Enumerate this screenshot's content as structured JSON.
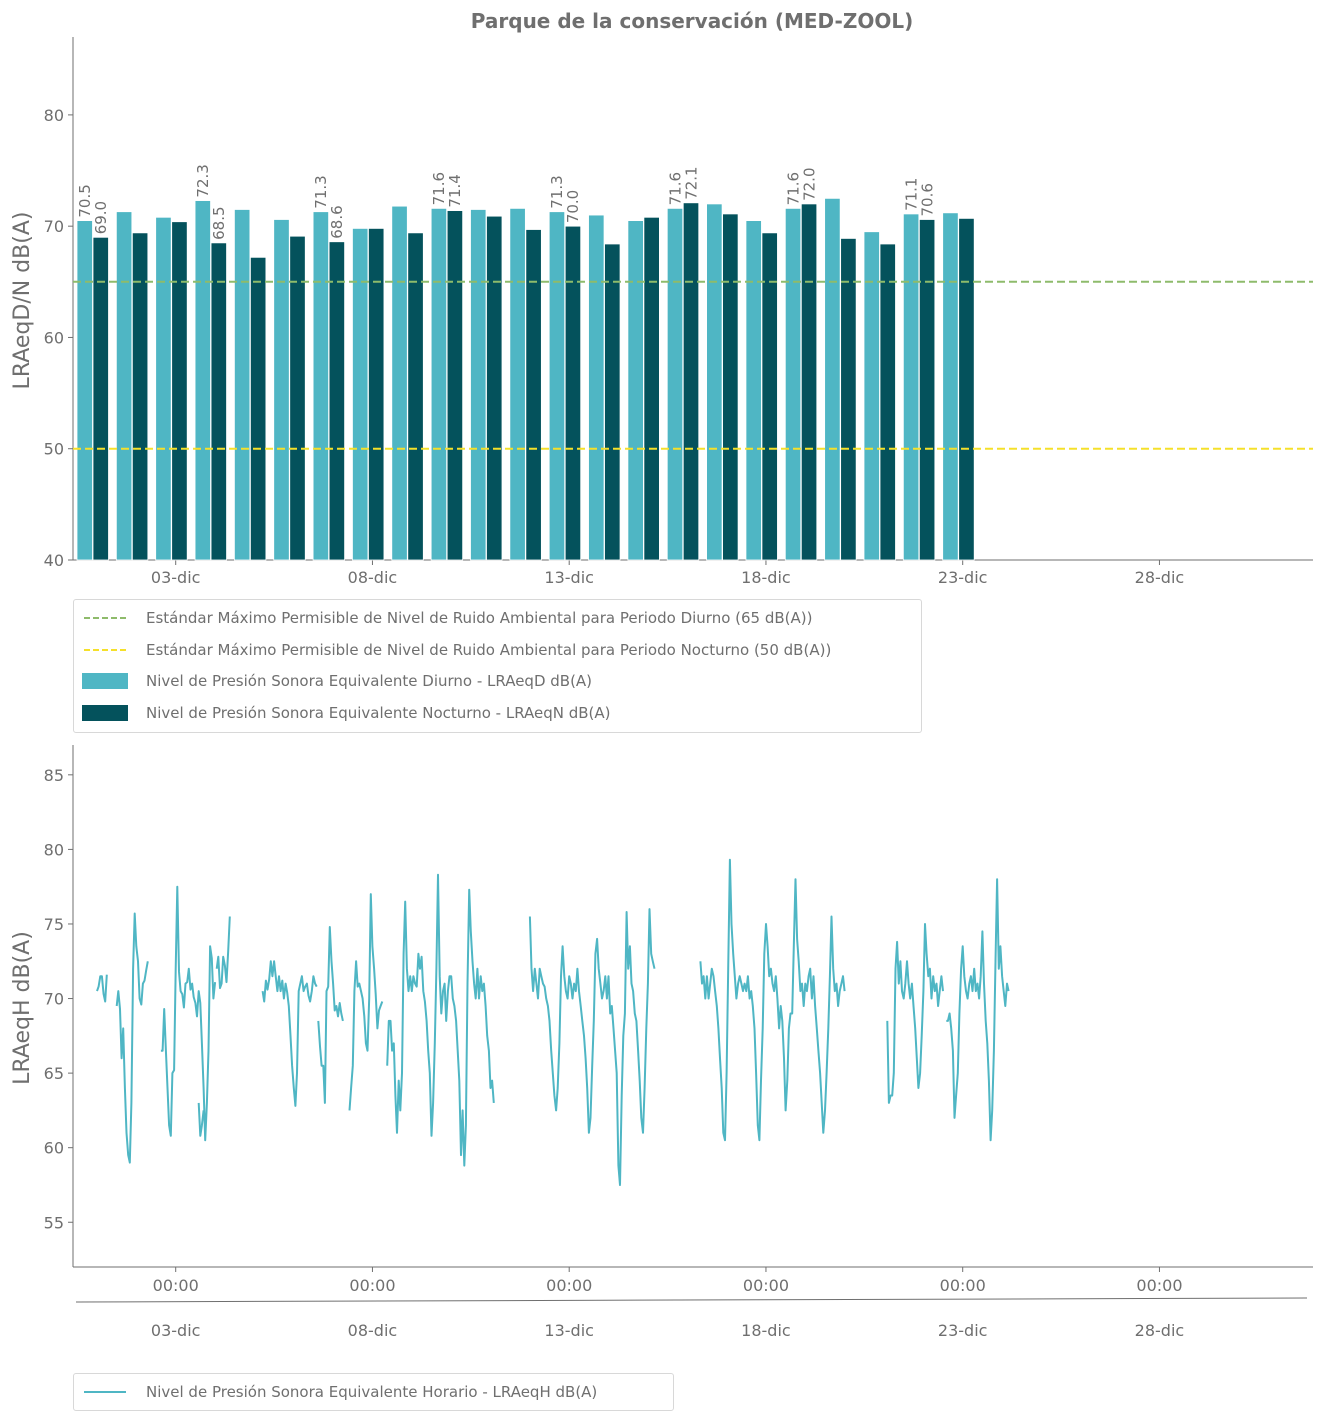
{
  "title": "Parque de la conservación  (MED-ZOOL)",
  "colors": {
    "day": "#4fb6c4",
    "night": "#04525c",
    "std_day": "#8ebb6b",
    "std_night": "#f5e02a",
    "hourly": "#4fb6c4",
    "text": "#6f6f6f"
  },
  "chart_data": [
    {
      "type": "bar",
      "ylabel": "LRAeqD/N dB(A)",
      "ylim": [
        40,
        87
      ],
      "yticks": [
        40,
        50,
        60,
        70,
        80
      ],
      "x_domain": [
        "2023-12-01",
        "2023-12-31"
      ],
      "xticks": [
        "03-dic",
        "08-dic",
        "13-dic",
        "18-dic",
        "23-dic",
        "28-dic"
      ],
      "categories": [
        "01-dic",
        "02-dic",
        "03-dic",
        "04-dic",
        "05-dic",
        "06-dic",
        "07-dic",
        "08-dic",
        "09-dic",
        "10-dic",
        "11-dic",
        "12-dic",
        "13-dic",
        "14-dic",
        "15-dic",
        "16-dic",
        "17-dic",
        "18-dic",
        "19-dic",
        "20-dic",
        "21-dic",
        "22-dic",
        "23-dic"
      ],
      "series": [
        {
          "name": "Nivel de Presión Sonora Equivalente Diurno - LRAeqD dB(A)",
          "values": [
            70.5,
            71.3,
            70.8,
            72.3,
            71.5,
            70.6,
            71.3,
            69.8,
            71.8,
            71.6,
            71.5,
            71.6,
            71.3,
            71.0,
            70.5,
            71.6,
            72.0,
            70.5,
            71.6,
            72.5,
            69.5,
            71.1,
            71.2
          ]
        },
        {
          "name": "Nivel de Presión Sonora Equivalente Nocturno - LRAeqN dB(A)",
          "values": [
            69.0,
            69.4,
            70.4,
            68.5,
            67.2,
            69.1,
            68.6,
            69.8,
            69.4,
            71.4,
            70.9,
            69.7,
            70.0,
            68.4,
            70.8,
            72.1,
            71.1,
            69.4,
            72.0,
            68.9,
            68.4,
            70.6,
            70.7
          ]
        }
      ],
      "labels": [
        {
          "index": 0,
          "day": "70.5",
          "night": "69.0"
        },
        {
          "index": 3,
          "day": "72.3",
          "night": "68.5"
        },
        {
          "index": 6,
          "day": "71.3",
          "night": "68.6"
        },
        {
          "index": 9,
          "day": "71.6",
          "night": "71.4"
        },
        {
          "index": 12,
          "day": "71.3",
          "night": "70.0"
        },
        {
          "index": 15,
          "day": "71.6",
          "night": "72.1"
        },
        {
          "index": 18,
          "day": "71.6",
          "night": "72.0"
        },
        {
          "index": 21,
          "day": "71.1",
          "night": "70.6"
        }
      ],
      "reference_lines": [
        {
          "name": "Estándar Máximo Permisible de Nivel de Ruido Ambiental para Periodo Diurno (65 dB(A))",
          "y": 65
        },
        {
          "name": "Estándar Máximo Permisible de Nivel de Ruido Ambiental para Periodo Nocturno (50 dB(A))",
          "y": 50
        }
      ],
      "legend_position": "bottom-left"
    },
    {
      "type": "line",
      "ylabel": "LRAeqH dB(A)",
      "ylim": [
        52,
        87
      ],
      "yticks": [
        55,
        60,
        65,
        70,
        75,
        80,
        85
      ],
      "x_domain": [
        "2023-12-01",
        "2023-12-31"
      ],
      "xticks_time": [
        "00:00",
        "00:00",
        "00:00",
        "00:00",
        "00:00",
        "00:00"
      ],
      "xticks_date": [
        "03-dic",
        "08-dic",
        "13-dic",
        "18-dic",
        "23-dic",
        "28-dic"
      ],
      "series": [
        {
          "name": "Nivel de Presión Sonora Equivalente Horario - LRAeqH dB(A)",
          "segments": [
            {
              "start": "2023-12-01 00:00",
              "values": [
                70.5,
                70.8,
                71.5,
                71.5,
                70.3,
                69.8,
                71.6
              ]
            },
            {
              "start": "2023-12-01 12:00",
              "values": [
                69.5,
                70.5,
                69.3,
                66.0,
                68.0,
                64.0,
                61.0,
                59.5,
                59.0,
                63.0,
                72.0,
                75.7,
                73.5,
                72.5,
                70.0,
                69.6,
                71.0,
                71.2,
                71.9,
                72.5
              ]
            },
            {
              "start": "2023-12-02 15:00",
              "values": [
                66.5,
                66.5,
                69.3,
                66.5,
                64.0,
                61.5,
                60.8,
                65.0,
                65.2,
                72.0,
                77.5,
                71.8,
                70.5,
                70.3,
                69.4,
                71.0,
                71.1,
                72.0,
                70.6,
                71.0,
                70.1,
                69.7,
                68.8,
                70.5,
                69.7,
                67.0,
                64.0,
                60.5,
                63.0,
                66.5,
                73.5,
                72.7,
                70.0,
                71.1
              ]
            },
            {
              "start": "2023-12-04 01:00",
              "values": [
                72.0,
                72.8,
                70.7,
                71.0,
                72.8,
                72.2,
                71.1,
                73.2,
                75.5
              ]
            },
            {
              "start": "2023-12-03 14:00",
              "values": [
                63.0,
                60.8,
                61.5,
                62.5
              ]
            },
            {
              "start": "2023-12-05 05:00",
              "values": [
                70.5,
                69.8,
                71.2,
                70.6,
                71.3,
                72.5,
                71.5,
                72.5,
                71.5,
                70.5,
                71.5,
                70.5,
                71.2,
                70.0,
                71.0,
                70.4,
                69.5,
                67.5,
                65.5,
                64.0,
                62.8,
                65.0,
                70.5,
                71.0,
                71.5,
                70.5,
                70.8,
                71.0,
                70.2,
                69.8,
                70.5,
                71.5,
                71.0,
                70.8
              ]
            },
            {
              "start": "2023-12-06 15:00",
              "values": [
                68.5,
                66.8,
                65.5,
                65.5,
                63.0,
                70.5,
                70.8,
                74.8,
                72.5,
                71.0,
                69.2,
                69.5,
                68.8,
                69.7,
                69.0,
                68.5
              ]
            },
            {
              "start": "2023-12-07 10:00",
              "values": [
                62.5,
                64.0,
                65.5,
                70.5,
                72.5,
                70.8,
                71.0,
                70.5,
                70.0,
                68.8,
                67.0,
                66.5,
                70.0,
                77.0,
                73.5,
                72.0,
                70.3,
                68.0,
                69.2,
                69.5,
                69.8
              ]
            },
            {
              "start": "2023-12-08 09:00",
              "values": [
                65.5,
                68.5,
                68.5,
                66.5,
                67.0,
                63.5,
                61.0,
                64.5,
                62.5,
                65.0,
                73.0,
                76.5,
                72.0,
                70.5,
                71.5,
                70.5,
                71.5,
                71.0,
                70.8,
                73.0,
                72.0,
                72.8,
                70.5,
                69.8,
                68.5,
                66.5,
                65.0,
                60.8,
                63.0,
                67.0,
                72.0,
                78.3,
                71.5,
                69.0,
                70.5,
                71.0,
                68.5,
                70.5,
                71.5,
                71.5,
                70.0,
                69.5,
                68.5,
                66.5,
                64.5,
                59.5,
                62.5,
                58.8,
                61.5,
                71.0,
                77.3,
                74.5,
                72.5,
                71.0,
                70.0,
                72.0,
                70.0,
                71.5,
                70.5,
                71.0,
                69.5,
                67.5,
                66.5,
                64.0,
                64.5,
                63.0
              ]
            },
            {
              "start": "2023-12-12 00:00",
              "values": [
                75.5,
                72.0,
                70.5,
                72.0,
                71.0,
                70.0,
                72.0,
                71.5,
                71.0,
                70.8,
                70.0,
                69.5,
                68.5,
                66.5,
                65.0,
                63.5,
                62.5,
                64.0,
                67.0,
                71.5,
                73.5,
                71.5,
                70.5,
                70.0,
                71.5,
                71.0,
                70.0,
                71.0,
                70.5,
                72.0,
                70.5,
                69.5,
                68.5,
                67.5,
                66.0,
                64.0,
                61.0,
                62.0,
                65.5,
                68.5,
                73.0,
                74.0,
                72.0,
                71.0,
                70.0,
                70.5,
                71.5,
                70.0,
                71.5,
                69.0,
                69.5,
                68.0,
                66.5,
                65.0,
                58.8,
                57.5,
                63.5,
                67.5,
                69.0,
                75.8,
                72.0,
                73.5,
                71.0,
                70.5,
                69.0,
                68.5,
                66.5,
                64.5,
                62.0,
                61.0,
                64.0,
                68.0,
                71.0,
                76.0,
                73.0,
                72.5,
                72.0
              ]
            },
            {
              "start": "2023-12-16 08:00",
              "values": [
                72.5,
                71.0,
                71.5,
                70.0,
                71.5,
                70.0,
                71.0,
                72.0,
                71.5,
                70.5,
                69.5,
                68.0,
                66.0,
                64.0,
                61.0,
                60.5,
                65.0,
                72.0,
                79.3,
                75.0,
                73.0,
                71.5,
                70.0,
                71.0,
                71.5,
                71.0,
                70.5,
                71.0,
                70.5,
                71.5,
                70.0,
                70.5,
                69.5,
                68.0,
                65.0,
                61.5,
                60.5,
                64.5,
                68.0,
                73.0,
                75.0,
                73.5,
                71.5,
                72.0,
                71.0,
                70.5,
                71.5,
                70.0,
                68.0,
                69.5,
                68.5,
                66.0,
                62.5,
                64.5,
                68.0,
                69.0,
                69.0,
                73.5,
                78.0,
                74.0,
                72.5,
                70.5,
                71.0,
                69.5,
                71.0,
                70.5,
                71.5,
                72.0,
                70.0,
                71.5,
                69.5,
                68.0,
                66.5,
                65.0,
                63.0,
                61.0,
                62.5,
                65.0,
                68.0,
                71.5,
                75.5,
                72.0,
                70.5,
                71.0,
                69.5,
                70.5,
                71.0,
                71.5,
                70.5
              ]
            },
            {
              "start": "2023-12-21 02:00",
              "values": [
                68.5,
                63.0,
                63.5,
                63.5,
                65.0,
                72.0,
                73.8,
                71.0,
                72.5,
                70.5,
                70.0,
                71.0,
                72.5,
                71.0,
                70.0,
                71.0,
                69.5,
                68.0,
                66.0,
                64.0,
                65.0,
                67.5,
                70.5,
                75.0,
                73.0,
                71.5,
                72.0,
                70.0,
                71.5,
                70.5,
                71.0,
                69.5,
                70.5,
                71.5,
                70.5
              ]
            },
            {
              "start": "2023-12-22 14:00",
              "values": [
                68.5,
                68.5,
                69.0,
                68.0,
                66.5,
                62.0,
                63.5,
                65.0,
                69.0,
                72.0,
                73.5,
                71.5,
                70.5,
                70.0,
                71.0,
                71.5,
                70.5,
                72.0,
                70.5,
                71.0,
                70.0,
                71.5,
                74.5,
                71.0,
                68.5,
                67.0,
                64.5,
                60.5,
                62.5,
                66.5,
                72.5,
                78.0,
                72.0,
                73.5,
                71.5,
                70.5,
                69.5,
                71.0,
                70.5
              ]
            }
          ]
        }
      ],
      "legend_position": "bottom-left"
    }
  ],
  "legend1": {
    "items": [
      {
        "label": "Estándar Máximo Permisible de Nivel de Ruido Ambiental para Periodo Diurno (65 dB(A))",
        "kind": "dash",
        "color": "#8ebb6b"
      },
      {
        "label": "Estándar Máximo Permisible de Nivel de Ruido Ambiental para Periodo Nocturno (50 dB(A))",
        "kind": "dash",
        "color": "#f5e02a"
      },
      {
        "label": "Nivel de Presión Sonora Equivalente Diurno - LRAeqD dB(A)",
        "kind": "fill",
        "color": "#4fb6c4"
      },
      {
        "label": "Nivel de Presión Sonora Equivalente Nocturno - LRAeqN dB(A)",
        "kind": "fill",
        "color": "#04525c"
      }
    ]
  },
  "legend2": {
    "items": [
      {
        "label": "Nivel de Presión Sonora Equivalente Horario - LRAeqH dB(A)",
        "kind": "line",
        "color": "#4fb6c4"
      }
    ]
  }
}
